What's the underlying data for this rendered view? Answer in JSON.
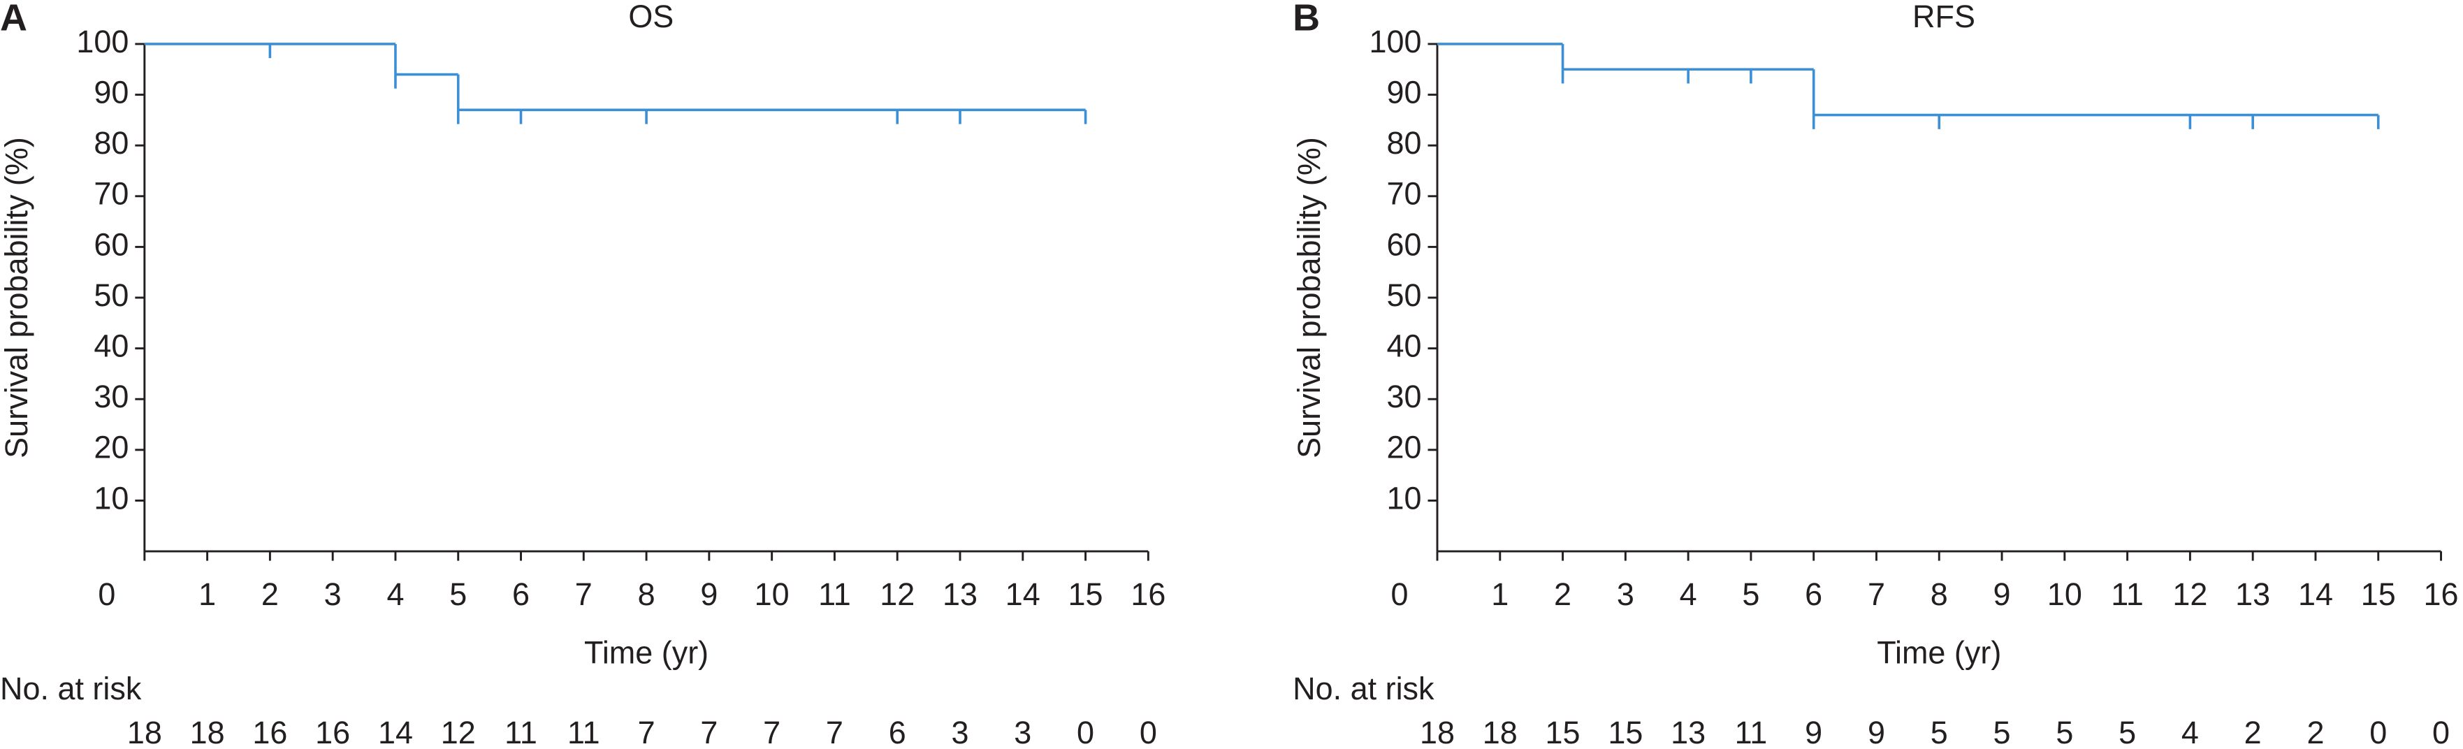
{
  "chart_data": [
    {
      "type": "km",
      "panel": "A",
      "title": "OS",
      "x_label": "Time (yr)",
      "y_label": "Survival probability (%)",
      "color": "#3a8fd6",
      "x": [
        0,
        4,
        5
      ],
      "values": [
        100,
        94,
        87
      ],
      "censored_x": [
        2,
        4,
        5,
        6,
        8,
        12,
        13,
        15
      ],
      "xlim": [
        0,
        16
      ],
      "xticks": [
        0,
        1,
        2,
        3,
        4,
        5,
        6,
        7,
        8,
        9,
        10,
        11,
        12,
        13,
        14,
        15,
        16
      ],
      "ylim": [
        0,
        100
      ],
      "yticks": [
        10,
        20,
        30,
        40,
        50,
        60,
        70,
        80,
        90,
        100
      ],
      "at_risk_label": "No. at risk",
      "at_risk": [
        18,
        18,
        16,
        16,
        14,
        12,
        11,
        11,
        7,
        7,
        7,
        7,
        6,
        3,
        3,
        0,
        0
      ]
    },
    {
      "type": "km",
      "panel": "B",
      "title": "RFS",
      "x_label": "Time (yr)",
      "y_label": "Survival probability (%)",
      "color": "#3a8fd6",
      "x": [
        0,
        2,
        6
      ],
      "values": [
        100,
        95,
        86
      ],
      "censored_x": [
        2,
        4,
        5,
        6,
        8,
        12,
        13,
        15
      ],
      "xlim": [
        0,
        16
      ],
      "xticks": [
        0,
        1,
        2,
        3,
        4,
        5,
        6,
        7,
        8,
        9,
        10,
        11,
        12,
        13,
        14,
        15,
        16
      ],
      "ylim": [
        0,
        100
      ],
      "yticks": [
        10,
        20,
        30,
        40,
        50,
        60,
        70,
        80,
        90,
        100
      ],
      "at_risk_label": "No. at risk",
      "at_risk": [
        18,
        18,
        15,
        15,
        13,
        11,
        9,
        9,
        5,
        5,
        5,
        5,
        4,
        2,
        2,
        0,
        0
      ]
    }
  ]
}
